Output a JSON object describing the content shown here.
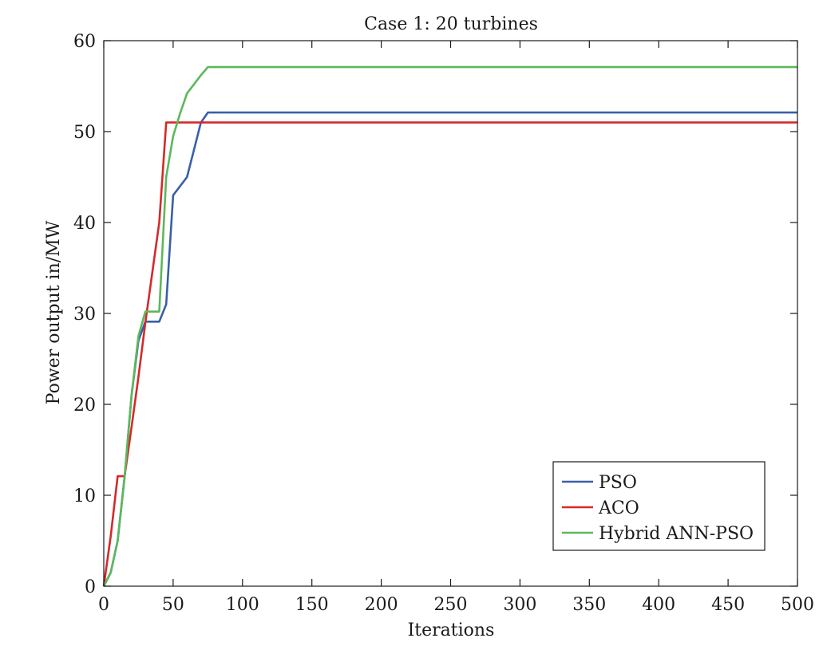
{
  "chart_data": {
    "type": "line",
    "title": "Case 1: 20 turbines",
    "xlabel": "Iterations",
    "ylabel": "Power output in/MW",
    "xlim": [
      0,
      500
    ],
    "ylim": [
      0,
      60
    ],
    "xticks": [
      0,
      50,
      100,
      150,
      200,
      250,
      300,
      350,
      400,
      450,
      500
    ],
    "yticks": [
      0,
      10,
      20,
      30,
      40,
      50,
      60
    ],
    "grid": false,
    "legend_position": "bottom-right",
    "series": [
      {
        "name": "PSO",
        "color": "#3a5fa8",
        "x": [
          0,
          5,
          10,
          15,
          20,
          25,
          30,
          35,
          40,
          45,
          50,
          55,
          60,
          65,
          70,
          75,
          500
        ],
        "y": [
          0,
          1.5,
          5,
          12,
          21,
          27,
          29.1,
          29.1,
          29.1,
          31,
          43,
          44,
          45,
          48,
          51,
          52.1,
          52.1
        ]
      },
      {
        "name": "ACO",
        "color": "#d42a2a",
        "x": [
          0,
          5,
          10,
          15,
          20,
          25,
          30,
          35,
          40,
          45,
          500
        ],
        "y": [
          0,
          5.5,
          12.1,
          12.1,
          17.5,
          23,
          29,
          34.5,
          40,
          51,
          51
        ]
      },
      {
        "name": "Hybrid ANN-PSO",
        "color": "#5cb85c",
        "x": [
          0,
          5,
          10,
          15,
          20,
          25,
          30,
          35,
          40,
          45,
          50,
          55,
          60,
          65,
          70,
          75,
          500
        ],
        "y": [
          0,
          1.5,
          5,
          12,
          21,
          27.5,
          30.2,
          30.2,
          30.2,
          45,
          49.5,
          52,
          54.2,
          55.2,
          56.2,
          57.1,
          57.1
        ]
      }
    ]
  }
}
